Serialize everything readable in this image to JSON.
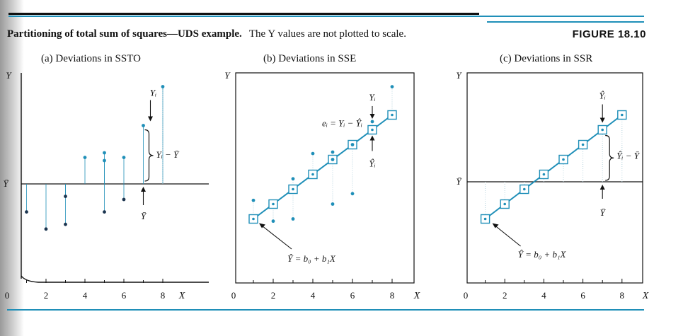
{
  "caption": {
    "bold": "Partitioning of total sum of squares—UDS example.",
    "normal": "The Y values are not plotted to scale."
  },
  "figure_label": "FIGURE 18.10",
  "chart_data": [
    {
      "type": "scatter",
      "panel": "a",
      "title": "(a) Deviations in SSTO",
      "xlabel": "X",
      "ylabel": "Y",
      "ymean_label": "Ȳ",
      "x_ticks": [
        "0",
        "2",
        "4",
        "6",
        "8"
      ],
      "points": [
        [
          1,
          -3.6
        ],
        [
          2,
          -5.8
        ],
        [
          3,
          -1.6
        ],
        [
          3,
          -5.2
        ],
        [
          4,
          3.4
        ],
        [
          5,
          4.0
        ],
        [
          5,
          3.0
        ],
        [
          5,
          -3.6
        ],
        [
          6,
          3.4
        ],
        [
          6,
          -2.0
        ],
        [
          7,
          7.5
        ],
        [
          8,
          12.5
        ]
      ],
      "annotations": [
        "Yᵢ",
        "Yᵢ − Ȳ",
        "Ȳ"
      ]
    },
    {
      "type": "scatter",
      "panel": "b",
      "title": "(b) Deviations in SSE",
      "xlabel": "X",
      "ylabel": "Y",
      "x_ticks": [
        "0",
        "2",
        "4",
        "6",
        "8"
      ],
      "points": [
        [
          1,
          -2.5
        ],
        [
          2,
          -5.3
        ],
        [
          3,
          -5.0
        ],
        [
          3,
          0.4
        ],
        [
          4,
          3.8
        ],
        [
          5,
          4.0
        ],
        [
          5,
          3.0
        ],
        [
          5,
          -3.0
        ],
        [
          6,
          5.0
        ],
        [
          6,
          -1.6
        ],
        [
          7,
          8.1
        ],
        [
          8,
          12.8
        ]
      ],
      "fitted": [
        [
          1,
          -5.0
        ],
        [
          2,
          -3.0
        ],
        [
          3,
          -1.0
        ],
        [
          4,
          1.0
        ],
        [
          5,
          3.0
        ],
        [
          6,
          5.0
        ],
        [
          7,
          7.0
        ],
        [
          8,
          9.0
        ]
      ],
      "annotations": [
        "Yᵢ",
        "eᵢ = Yᵢ − Ŷᵢ",
        "Ŷᵢ",
        "Ŷ = b₀ + b₁X"
      ]
    },
    {
      "type": "line",
      "panel": "c",
      "title": "(c) Deviations in SSR",
      "xlabel": "X",
      "ylabel": "Y",
      "ymean_label": "Ȳ",
      "x_ticks": [
        "0",
        "2",
        "4",
        "6",
        "8"
      ],
      "fitted": [
        [
          1,
          -5.0
        ],
        [
          2,
          -3.0
        ],
        [
          3,
          -1.0
        ],
        [
          4,
          1.0
        ],
        [
          5,
          3.0
        ],
        [
          6,
          5.0
        ],
        [
          7,
          7.0
        ],
        [
          8,
          9.0
        ]
      ],
      "annotations": [
        "Ŷᵢ",
        "Ŷᵢ − Ȳ",
        "Ȳ",
        "Ŷ = b₀ + b₁X"
      ]
    }
  ]
}
